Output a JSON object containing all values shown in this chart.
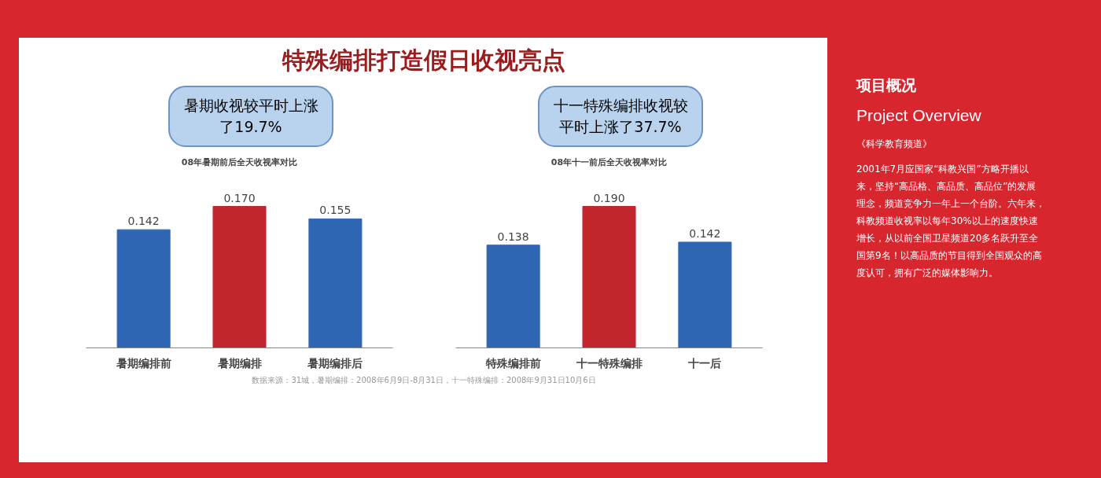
{
  "chart_data": [
    {
      "type": "bar",
      "title": "08年暑期前后全天收视率对比",
      "categories": [
        "暑期编排前",
        "暑期编排",
        "暑期编排后"
      ],
      "values": [
        0.142,
        0.17,
        0.155
      ],
      "value_labels": [
        "0.142",
        "0.170",
        "0.155"
      ],
      "colors": [
        "#2f66b3",
        "#c1272d",
        "#2f66b3"
      ],
      "grid": false,
      "annotations": [
        "特殊编排打造假日收视亮点",
        "暑期收视较平时上涨了19.7%",
        "数据来源：31城，暑期编排：2008年6月9日-8月31日，十一特殊编排：2008年9月31日10月6日"
      ]
    },
    {
      "type": "bar",
      "title": "08年十一前后全天收视率对比",
      "categories": [
        "特殊编排前",
        "十一特殊编排",
        "十一后"
      ],
      "values": [
        0.138,
        0.19,
        0.142
      ],
      "value_labels": [
        "0.138",
        "0.190",
        "0.142"
      ],
      "colors": [
        "#2f66b3",
        "#c1272d",
        "#2f66b3"
      ],
      "grid": false,
      "annotations": [
        "十一特殊编排收视较平时上涨了37.7%"
      ]
    },
    {
      "type": "other",
      "title": "项目概况",
      "subtitle": "Project Overview",
      "annotations": [
        "《科学教育频道》",
        "2001年7月应国家“科教兴国”方略开播以来，坚持“高品格、高品质、高品位”的发展理念，频道竞争力一年上一个台阶。六年来，科教频道收视率以每年30%以上的速度快速增长，从以前全国卫星频道20多名跃升至全国第9名！以高品质的节目得到全国观众的高度认可，拥有广泛的媒体影响力。"
      ]
    }
  ]
}
